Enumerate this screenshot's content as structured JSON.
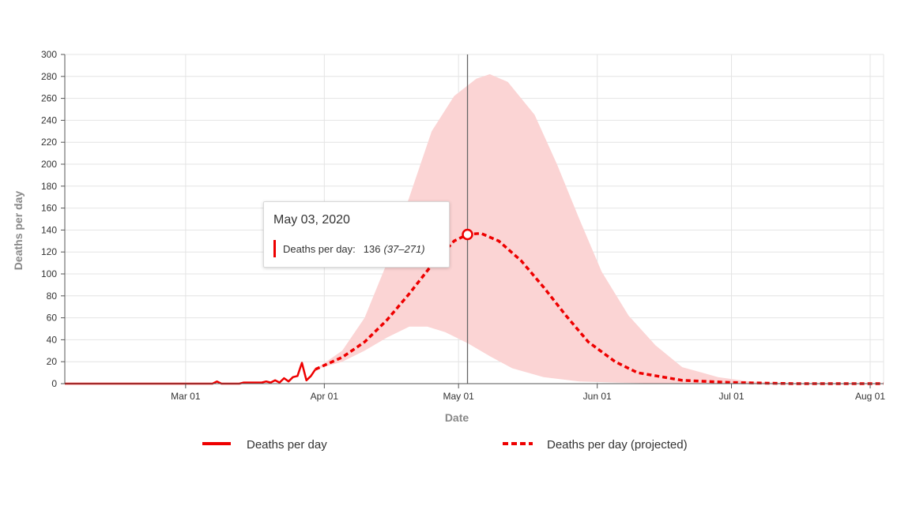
{
  "chart_data": {
    "type": "line",
    "xlabel": "Date",
    "ylabel": "Deaths per day",
    "x_range": [
      "2020-02-03",
      "2020-08-04"
    ],
    "ylim": [
      0,
      300
    ],
    "y_ticks": [
      0,
      20,
      40,
      60,
      80,
      100,
      120,
      140,
      160,
      180,
      200,
      220,
      240,
      260,
      280,
      300
    ],
    "x_ticks": [
      {
        "date": "2020-03-01",
        "label": "Mar 01"
      },
      {
        "date": "2020-04-01",
        "label": "Apr 01"
      },
      {
        "date": "2020-05-01",
        "label": "May 01"
      },
      {
        "date": "2020-06-01",
        "label": "Jun 01"
      },
      {
        "date": "2020-07-01",
        "label": "Jul 01"
      },
      {
        "date": "2020-08-01",
        "label": "Aug 01"
      }
    ],
    "grid": true,
    "legend_position": "bottom",
    "series": [
      {
        "name": "Deaths per day",
        "style": "solid",
        "color": "#ee0000",
        "points": [
          [
            "2020-02-03",
            0
          ],
          [
            "2020-03-07",
            0
          ],
          [
            "2020-03-08",
            2
          ],
          [
            "2020-03-09",
            0
          ],
          [
            "2020-03-13",
            0
          ],
          [
            "2020-03-14",
            1
          ],
          [
            "2020-03-18",
            1
          ],
          [
            "2020-03-19",
            2
          ],
          [
            "2020-03-20",
            1
          ],
          [
            "2020-03-21",
            3
          ],
          [
            "2020-03-22",
            1
          ],
          [
            "2020-03-23",
            5
          ],
          [
            "2020-03-24",
            2
          ],
          [
            "2020-03-25",
            6
          ],
          [
            "2020-03-26",
            7
          ],
          [
            "2020-03-27",
            19
          ],
          [
            "2020-03-28",
            3
          ],
          [
            "2020-03-29",
            7
          ],
          [
            "2020-03-30",
            13
          ]
        ]
      },
      {
        "name": "Deaths per day (projected)",
        "style": "dashed",
        "color": "#ee0000",
        "points": [
          [
            "2020-03-30",
            13
          ],
          [
            "2020-04-05",
            24
          ],
          [
            "2020-04-10",
            38
          ],
          [
            "2020-04-15",
            58
          ],
          [
            "2020-04-20",
            82
          ],
          [
            "2020-04-25",
            108
          ],
          [
            "2020-04-30",
            130
          ],
          [
            "2020-05-03",
            136
          ],
          [
            "2020-05-06",
            137
          ],
          [
            "2020-05-10",
            130
          ],
          [
            "2020-05-15",
            112
          ],
          [
            "2020-05-20",
            88
          ],
          [
            "2020-05-25",
            62
          ],
          [
            "2020-05-30",
            38
          ],
          [
            "2020-06-05",
            20
          ],
          [
            "2020-06-10",
            10
          ],
          [
            "2020-06-20",
            3
          ],
          [
            "2020-07-01",
            1
          ],
          [
            "2020-07-15",
            0
          ],
          [
            "2020-08-04",
            0
          ]
        ]
      }
    ],
    "uncertainty_band": {
      "color": "#fbd4d4",
      "upper": [
        [
          "2020-03-30",
          13
        ],
        [
          "2020-04-05",
          30
        ],
        [
          "2020-04-10",
          60
        ],
        [
          "2020-04-15",
          110
        ],
        [
          "2020-04-20",
          170
        ],
        [
          "2020-04-25",
          230
        ],
        [
          "2020-04-30",
          262
        ],
        [
          "2020-05-05",
          278
        ],
        [
          "2020-05-08",
          282
        ],
        [
          "2020-05-12",
          275
        ],
        [
          "2020-05-18",
          245
        ],
        [
          "2020-05-23",
          200
        ],
        [
          "2020-05-28",
          150
        ],
        [
          "2020-06-02",
          102
        ],
        [
          "2020-06-08",
          62
        ],
        [
          "2020-06-14",
          35
        ],
        [
          "2020-06-20",
          15
        ],
        [
          "2020-06-28",
          6
        ],
        [
          "2020-07-05",
          2
        ],
        [
          "2020-07-15",
          0
        ]
      ],
      "lower": [
        [
          "2020-03-30",
          13
        ],
        [
          "2020-04-05",
          20
        ],
        [
          "2020-04-10",
          30
        ],
        [
          "2020-04-15",
          42
        ],
        [
          "2020-04-20",
          52
        ],
        [
          "2020-04-24",
          52
        ],
        [
          "2020-04-28",
          47
        ],
        [
          "2020-05-03",
          37
        ],
        [
          "2020-05-08",
          25
        ],
        [
          "2020-05-13",
          14
        ],
        [
          "2020-05-20",
          6
        ],
        [
          "2020-05-28",
          2
        ],
        [
          "2020-06-05",
          1
        ],
        [
          "2020-06-15",
          0
        ],
        [
          "2020-07-15",
          0
        ]
      ]
    },
    "crosshair_date": "2020-05-03",
    "tooltip": {
      "date": "May 03, 2020",
      "label": "Deaths per day:",
      "value": "136",
      "range": "(37–271)",
      "point": [
        "2020-05-03",
        136
      ]
    }
  }
}
